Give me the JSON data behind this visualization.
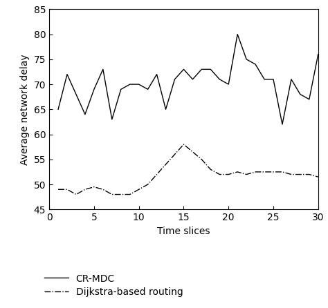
{
  "x": [
    1,
    2,
    3,
    4,
    5,
    6,
    7,
    8,
    9,
    10,
    11,
    12,
    13,
    14,
    15,
    16,
    17,
    18,
    19,
    20,
    21,
    22,
    23,
    24,
    25,
    26,
    27,
    28,
    29,
    30
  ],
  "cr_mdc": [
    65,
    72,
    68,
    64,
    69,
    73,
    63,
    69,
    70,
    70,
    69,
    72,
    65,
    71,
    73,
    71,
    73,
    73,
    71,
    70,
    80,
    75,
    74,
    71,
    71,
    62,
    71,
    68,
    67,
    76
  ],
  "dijkstra": [
    49,
    49,
    48,
    49,
    49.5,
    49,
    48,
    48,
    48,
    49,
    50,
    52,
    54,
    56,
    58,
    56.5,
    55,
    53,
    52,
    52,
    52.5,
    52,
    52.5,
    52.5,
    52.5,
    52.5,
    52,
    52,
    52,
    51.5
  ],
  "xlabel": "Time slices",
  "ylabel": "Average network delay",
  "ylim": [
    45,
    85
  ],
  "xlim": [
    0,
    30
  ],
  "yticks": [
    45,
    50,
    55,
    60,
    65,
    70,
    75,
    80,
    85
  ],
  "xticks": [
    0,
    5,
    10,
    15,
    20,
    25,
    30
  ],
  "legend_cr_mdc": "CR-MDC",
  "legend_dijkstra": "Dijkstra-based routing",
  "line_color": "#000000",
  "figsize": [
    4.74,
    4.46
  ],
  "dpi": 100
}
